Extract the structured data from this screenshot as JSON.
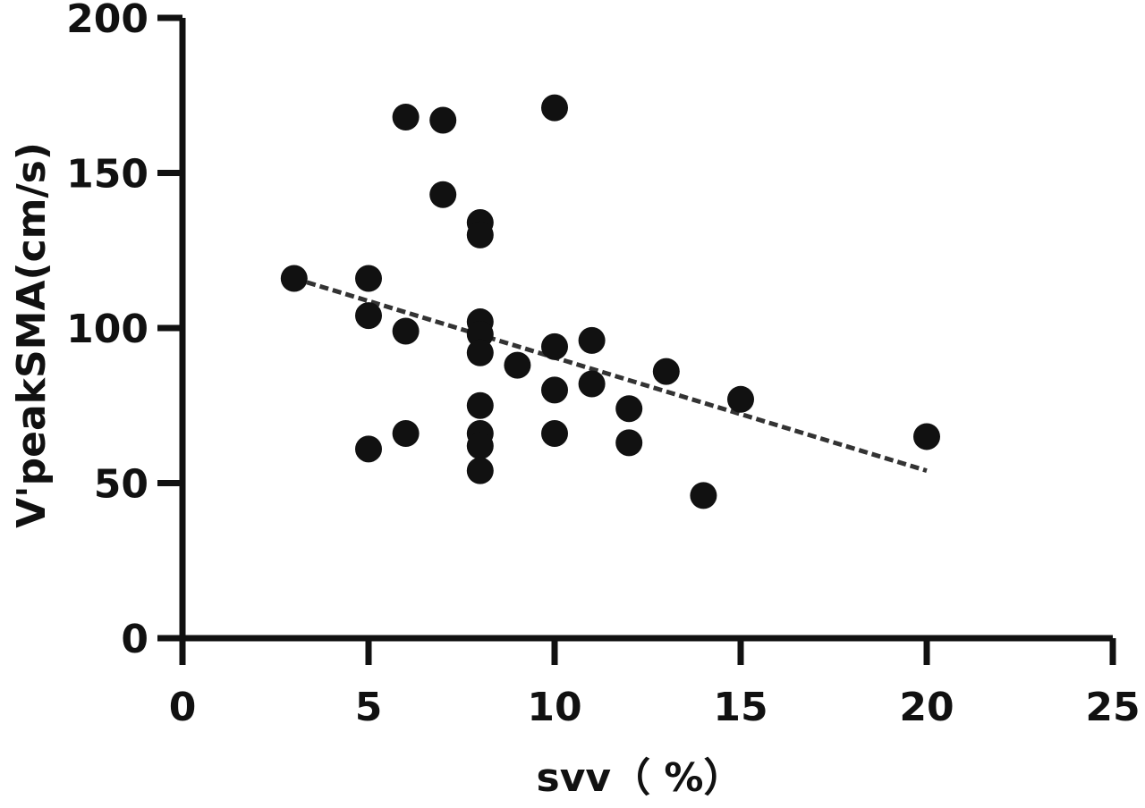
{
  "chart_data": {
    "type": "scatter",
    "xlabel": "svv（ %）",
    "ylabel": "V'peakSMA(cm/s)",
    "xlim": [
      0,
      25
    ],
    "ylim": [
      0,
      200
    ],
    "x_ticks": [
      0,
      5,
      10,
      15,
      20,
      25
    ],
    "y_ticks": [
      0,
      50,
      100,
      150,
      200
    ],
    "grid": false,
    "points": [
      {
        "x": 3,
        "y": 116
      },
      {
        "x": 5,
        "y": 116
      },
      {
        "x": 5,
        "y": 104
      },
      {
        "x": 5,
        "y": 61
      },
      {
        "x": 6,
        "y": 168
      },
      {
        "x": 6,
        "y": 99
      },
      {
        "x": 6,
        "y": 66
      },
      {
        "x": 7,
        "y": 167
      },
      {
        "x": 7,
        "y": 143
      },
      {
        "x": 8,
        "y": 134
      },
      {
        "x": 8,
        "y": 130
      },
      {
        "x": 8,
        "y": 102
      },
      {
        "x": 8,
        "y": 98
      },
      {
        "x": 8,
        "y": 92
      },
      {
        "x": 8,
        "y": 75
      },
      {
        "x": 8,
        "y": 66
      },
      {
        "x": 8,
        "y": 62
      },
      {
        "x": 8,
        "y": 54
      },
      {
        "x": 9,
        "y": 88
      },
      {
        "x": 10,
        "y": 171
      },
      {
        "x": 10,
        "y": 94
      },
      {
        "x": 10,
        "y": 80
      },
      {
        "x": 10,
        "y": 66
      },
      {
        "x": 11,
        "y": 96
      },
      {
        "x": 11,
        "y": 82
      },
      {
        "x": 12,
        "y": 74
      },
      {
        "x": 12,
        "y": 63
      },
      {
        "x": 13,
        "y": 86
      },
      {
        "x": 14,
        "y": 46
      },
      {
        "x": 15,
        "y": 77
      },
      {
        "x": 20,
        "y": 65
      }
    ],
    "trendline": {
      "x1": 3,
      "y1": 116,
      "x2": 20,
      "y2": 54,
      "style": "dashed"
    }
  }
}
